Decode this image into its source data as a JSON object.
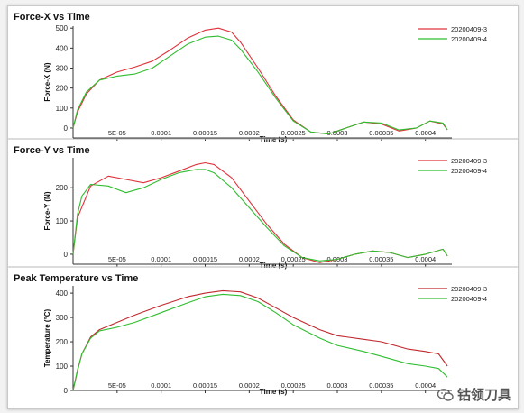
{
  "chart_data": [
    {
      "type": "line",
      "title": "Force-X vs Time",
      "xlabel": "Time (s)",
      "ylabel": "Force-X (N)",
      "xlim": [
        0,
        0.00043
      ],
      "ylim": [
        -50,
        510
      ],
      "x_ticks": [
        5e-05,
        0.0001,
        0.00015,
        0.0002,
        0.00025,
        0.0003,
        0.00035,
        0.0004
      ],
      "x_tick_labels": [
        "5E-05",
        "0.0001",
        "0.00015",
        "0.0002",
        "0.00025",
        "0.0003",
        "0.00035",
        "0.0004"
      ],
      "y_ticks": [
        0,
        100,
        200,
        300,
        400,
        500
      ],
      "y_tick_labels": [
        "0",
        "100",
        "200",
        "300",
        "400",
        "500"
      ],
      "legend_position": "top-right",
      "series": [
        {
          "name": "20200409-3",
          "color": "#e0303a",
          "x": [
            0,
            5e-06,
            1.5e-05,
            3e-05,
            5e-05,
            7e-05,
            9e-05,
            0.00011,
            0.00013,
            0.00015,
            0.000165,
            0.00018,
            0.00019,
            0.00021,
            0.00023,
            0.00025,
            0.00027,
            0.00029,
            0.00031,
            0.00033,
            0.00035,
            0.00037,
            0.00039,
            0.000405,
            0.00042,
            0.000425
          ],
          "y": [
            0,
            80,
            170,
            240,
            280,
            305,
            335,
            390,
            450,
            490,
            500,
            480,
            430,
            300,
            160,
            40,
            -20,
            -30,
            0,
            30,
            20,
            -15,
            0,
            35,
            20,
            -10
          ]
        },
        {
          "name": "20200409-4",
          "color": "#2fbd2f",
          "x": [
            0,
            5e-06,
            1.5e-05,
            3e-05,
            5e-05,
            7e-05,
            9e-05,
            0.00011,
            0.00013,
            0.00015,
            0.000165,
            0.00018,
            0.00019,
            0.00021,
            0.00023,
            0.00025,
            0.00027,
            0.00029,
            0.00031,
            0.00033,
            0.00035,
            0.00037,
            0.00039,
            0.000405,
            0.00042,
            0.000425
          ],
          "y": [
            0,
            90,
            180,
            240,
            260,
            270,
            300,
            360,
            420,
            455,
            460,
            440,
            395,
            280,
            150,
            35,
            -20,
            -30,
            0,
            30,
            25,
            -10,
            0,
            35,
            25,
            -10
          ]
        }
      ]
    },
    {
      "type": "line",
      "title": "Force-Y vs Time",
      "xlabel": "Time (s)",
      "ylabel": "Force-Y (N)",
      "xlim": [
        0,
        0.00043
      ],
      "ylim": [
        -30,
        290
      ],
      "x_ticks": [
        5e-05,
        0.0001,
        0.00015,
        0.0002,
        0.00025,
        0.0003,
        0.00035,
        0.0004
      ],
      "x_tick_labels": [
        "5E-05",
        "0.0001",
        "0.00015",
        "0.0002",
        "0.00025",
        "0.0003",
        "0.00035",
        "0.0004"
      ],
      "y_ticks": [
        0,
        100,
        200
      ],
      "y_tick_labels": [
        "0",
        "100",
        "200"
      ],
      "legend_position": "top-right",
      "series": [
        {
          "name": "20200409-3",
          "color": "#e0303a",
          "x": [
            0,
            5e-06,
            2e-05,
            4e-05,
            6e-05,
            8e-05,
            0.0001,
            0.00012,
            0.00014,
            0.00015,
            0.00016,
            0.00018,
            0.0002,
            0.00022,
            0.00024,
            0.00026,
            0.00028,
            0.0003,
            0.00032,
            0.00034,
            0.00036,
            0.00038,
            0.0004,
            0.00042,
            0.000425
          ],
          "y": [
            0,
            110,
            205,
            235,
            225,
            215,
            230,
            250,
            270,
            275,
            270,
            230,
            160,
            90,
            30,
            -10,
            -25,
            -15,
            0,
            10,
            5,
            -10,
            0,
            15,
            -5
          ]
        },
        {
          "name": "20200409-4",
          "color": "#2fbd2f",
          "x": [
            0,
            5e-06,
            1e-05,
            2e-05,
            4e-05,
            6e-05,
            8e-05,
            0.0001,
            0.00012,
            0.00014,
            0.00015,
            0.00016,
            0.00018,
            0.0002,
            0.00022,
            0.00024,
            0.00026,
            0.00028,
            0.0003,
            0.00032,
            0.00034,
            0.00036,
            0.00038,
            0.0004,
            0.00042,
            0.000425
          ],
          "y": [
            0,
            120,
            175,
            210,
            205,
            185,
            200,
            225,
            245,
            255,
            255,
            245,
            200,
            140,
            80,
            25,
            -10,
            -20,
            -15,
            0,
            10,
            5,
            -10,
            0,
            15,
            -5
          ]
        }
      ]
    },
    {
      "type": "line",
      "title": "Peak Temperature vs Time",
      "xlabel": "Time (s)",
      "ylabel": "Temperature (°C)",
      "xlim": [
        0,
        0.00043
      ],
      "ylim": [
        0,
        430
      ],
      "x_ticks": [
        5e-05,
        0.0001,
        0.00015,
        0.0002,
        0.00025,
        0.0003,
        0.00035,
        0.0004
      ],
      "x_tick_labels": [
        "5E-05",
        "0.0001",
        "0.00015",
        "0.0002",
        "0.00025",
        "0.0003",
        "0.00035",
        "0.0004"
      ],
      "y_ticks": [
        0,
        100,
        200,
        300,
        400
      ],
      "y_tick_labels": [
        "0",
        "100",
        "200",
        "300",
        "400"
      ],
      "legend_position": "top-right",
      "series": [
        {
          "name": "20200409-3",
          "color": "#c0282e",
          "x": [
            0,
            5e-06,
            1e-05,
            2e-05,
            3e-05,
            5e-05,
            7e-05,
            0.0001,
            0.00013,
            0.00015,
            0.00017,
            0.00019,
            0.00021,
            0.00023,
            0.00025,
            0.00028,
            0.0003,
            0.00033,
            0.00035,
            0.00038,
            0.0004,
            0.000415,
            0.000425
          ],
          "y": [
            0,
            80,
            150,
            220,
            250,
            280,
            310,
            350,
            385,
            400,
            410,
            405,
            380,
            340,
            300,
            250,
            225,
            210,
            200,
            170,
            160,
            150,
            100
          ]
        },
        {
          "name": "20200409-4",
          "color": "#2fbd2f",
          "x": [
            0,
            5e-06,
            1e-05,
            2e-05,
            3e-05,
            5e-05,
            7e-05,
            0.0001,
            0.00013,
            0.00015,
            0.00017,
            0.00019,
            0.00021,
            0.00023,
            0.00025,
            0.00028,
            0.0003,
            0.00033,
            0.00035,
            0.00038,
            0.0004,
            0.000415,
            0.000425
          ],
          "y": [
            0,
            85,
            150,
            215,
            245,
            260,
            280,
            320,
            360,
            385,
            395,
            390,
            365,
            320,
            270,
            215,
            185,
            160,
            140,
            110,
            100,
            90,
            55
          ]
        }
      ]
    }
  ],
  "watermark": {
    "text": "钴领刀具",
    "icon": "wechat-icon"
  }
}
